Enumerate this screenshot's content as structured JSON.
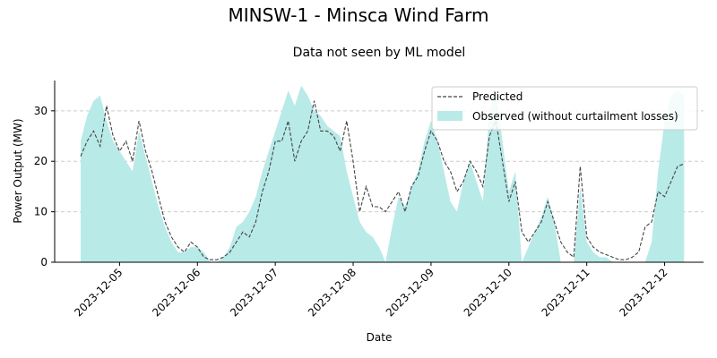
{
  "chart_data": {
    "type": "area",
    "title": "MINSW-1 - Minsca Wind Farm",
    "subtitle": "Data not seen by ML model",
    "xlabel": "Date",
    "ylabel": "Power Output (MW)",
    "xlim": [
      "2023-12-04 04:00",
      "2023-12-12 12:00"
    ],
    "ylim": [
      0,
      36
    ],
    "x_ticks": [
      "2023-12-05",
      "2023-12-06",
      "2023-12-07",
      "2023-12-08",
      "2023-12-09",
      "2023-12-10",
      "2023-12-11",
      "2023-12-12"
    ],
    "y_ticks": [
      0,
      10,
      20,
      30
    ],
    "grid": "y-dashed",
    "legend": "top-right",
    "series": [
      {
        "name": "Predicted",
        "style": "dashed-line",
        "color": "#444444",
        "points": [
          [
            "2023-12-04 12:00",
            21
          ],
          [
            "2023-12-04 14:00",
            24
          ],
          [
            "2023-12-04 16:00",
            26
          ],
          [
            "2023-12-04 18:00",
            23
          ],
          [
            "2023-12-04 20:00",
            31
          ],
          [
            "2023-12-04 22:00",
            25
          ],
          [
            "2023-12-05 00:00",
            22
          ],
          [
            "2023-12-05 02:00",
            24
          ],
          [
            "2023-12-05 04:00",
            20
          ],
          [
            "2023-12-05 06:00",
            28
          ],
          [
            "2023-12-05 08:00",
            22
          ],
          [
            "2023-12-05 10:00",
            18
          ],
          [
            "2023-12-05 12:00",
            13
          ],
          [
            "2023-12-05 14:00",
            8
          ],
          [
            "2023-12-05 16:00",
            5
          ],
          [
            "2023-12-05 18:00",
            3
          ],
          [
            "2023-12-05 20:00",
            2
          ],
          [
            "2023-12-05 22:00",
            4
          ],
          [
            "2023-12-06 00:00",
            3
          ],
          [
            "2023-12-06 02:00",
            1
          ],
          [
            "2023-12-06 04:00",
            0.5
          ],
          [
            "2023-12-06 06:00",
            0.5
          ],
          [
            "2023-12-06 08:00",
            1
          ],
          [
            "2023-12-06 10:00",
            2
          ],
          [
            "2023-12-06 12:00",
            4
          ],
          [
            "2023-12-06 14:00",
            6
          ],
          [
            "2023-12-06 16:00",
            5
          ],
          [
            "2023-12-06 18:00",
            8
          ],
          [
            "2023-12-06 20:00",
            14
          ],
          [
            "2023-12-06 22:00",
            18
          ],
          [
            "2023-12-07 00:00",
            24
          ],
          [
            "2023-12-07 02:00",
            24
          ],
          [
            "2023-12-07 04:00",
            28
          ],
          [
            "2023-12-07 06:00",
            20
          ],
          [
            "2023-12-07 08:00",
            24
          ],
          [
            "2023-12-07 10:00",
            26
          ],
          [
            "2023-12-07 12:00",
            32
          ],
          [
            "2023-12-07 14:00",
            26
          ],
          [
            "2023-12-07 16:00",
            26
          ],
          [
            "2023-12-07 18:00",
            25
          ],
          [
            "2023-12-07 20:00",
            22
          ],
          [
            "2023-12-07 22:00",
            28
          ],
          [
            "2023-12-08 00:00",
            20
          ],
          [
            "2023-12-08 02:00",
            10
          ],
          [
            "2023-12-08 04:00",
            15
          ],
          [
            "2023-12-08 06:00",
            11
          ],
          [
            "2023-12-08 08:00",
            11
          ],
          [
            "2023-12-08 10:00",
            10
          ],
          [
            "2023-12-08 12:00",
            12
          ],
          [
            "2023-12-08 14:00",
            14
          ],
          [
            "2023-12-08 16:00",
            10
          ],
          [
            "2023-12-08 18:00",
            15
          ],
          [
            "2023-12-08 20:00",
            17
          ],
          [
            "2023-12-08 22:00",
            22
          ],
          [
            "2023-12-09 00:00",
            26
          ],
          [
            "2023-12-09 02:00",
            24
          ],
          [
            "2023-12-09 04:00",
            20
          ],
          [
            "2023-12-09 06:00",
            18
          ],
          [
            "2023-12-09 08:00",
            14
          ],
          [
            "2023-12-09 10:00",
            16
          ],
          [
            "2023-12-09 12:00",
            20
          ],
          [
            "2023-12-09 14:00",
            18
          ],
          [
            "2023-12-09 16:00",
            15
          ],
          [
            "2023-12-09 18:00",
            25
          ],
          [
            "2023-12-09 20:00",
            28
          ],
          [
            "2023-12-09 22:00",
            20
          ],
          [
            "2023-12-10 00:00",
            12
          ],
          [
            "2023-12-10 02:00",
            16
          ],
          [
            "2023-12-10 04:00",
            6
          ],
          [
            "2023-12-10 06:00",
            4
          ],
          [
            "2023-12-10 08:00",
            6
          ],
          [
            "2023-12-10 10:00",
            8
          ],
          [
            "2023-12-10 12:00",
            12
          ],
          [
            "2023-12-10 14:00",
            8
          ],
          [
            "2023-12-10 16:00",
            4
          ],
          [
            "2023-12-10 18:00",
            2
          ],
          [
            "2023-12-10 20:00",
            1
          ],
          [
            "2023-12-10 22:00",
            19
          ],
          [
            "2023-12-11 00:00",
            5
          ],
          [
            "2023-12-11 02:00",
            3
          ],
          [
            "2023-12-11 04:00",
            2
          ],
          [
            "2023-12-11 06:00",
            1.5
          ],
          [
            "2023-12-11 08:00",
            1
          ],
          [
            "2023-12-11 10:00",
            0.5
          ],
          [
            "2023-12-11 12:00",
            0.5
          ],
          [
            "2023-12-11 14:00",
            1
          ],
          [
            "2023-12-11 16:00",
            2
          ],
          [
            "2023-12-11 18:00",
            7
          ],
          [
            "2023-12-11 20:00",
            8
          ],
          [
            "2023-12-11 22:00",
            14
          ],
          [
            "2023-12-12 00:00",
            13
          ],
          [
            "2023-12-12 02:00",
            16
          ],
          [
            "2023-12-12 04:00",
            19
          ],
          [
            "2023-12-12 06:00",
            19.5
          ]
        ]
      },
      {
        "name": "Observed (without curtailment losses)",
        "style": "filled-area",
        "color": "#b8eae8",
        "points": [
          [
            "2023-12-04 12:00",
            24
          ],
          [
            "2023-12-04 14:00",
            29
          ],
          [
            "2023-12-04 16:00",
            32
          ],
          [
            "2023-12-04 18:00",
            33
          ],
          [
            "2023-12-04 20:00",
            28
          ],
          [
            "2023-12-04 22:00",
            24
          ],
          [
            "2023-12-05 00:00",
            22
          ],
          [
            "2023-12-05 02:00",
            20
          ],
          [
            "2023-12-05 04:00",
            18
          ],
          [
            "2023-12-05 06:00",
            26
          ],
          [
            "2023-12-05 08:00",
            21
          ],
          [
            "2023-12-05 10:00",
            16
          ],
          [
            "2023-12-05 12:00",
            11
          ],
          [
            "2023-12-05 14:00",
            7
          ],
          [
            "2023-12-05 16:00",
            4
          ],
          [
            "2023-12-05 18:00",
            2
          ],
          [
            "2023-12-05 20:00",
            2
          ],
          [
            "2023-12-05 22:00",
            3
          ],
          [
            "2023-12-06 00:00",
            3
          ],
          [
            "2023-12-06 02:00",
            2
          ],
          [
            "2023-12-06 04:00",
            0
          ],
          [
            "2023-12-06 06:00",
            0
          ],
          [
            "2023-12-06 08:00",
            1
          ],
          [
            "2023-12-06 10:00",
            3
          ],
          [
            "2023-12-06 12:00",
            7
          ],
          [
            "2023-12-06 14:00",
            8
          ],
          [
            "2023-12-06 16:00",
            10
          ],
          [
            "2023-12-06 18:00",
            13
          ],
          [
            "2023-12-06 20:00",
            18
          ],
          [
            "2023-12-06 22:00",
            22
          ],
          [
            "2023-12-07 00:00",
            26
          ],
          [
            "2023-12-07 02:00",
            30
          ],
          [
            "2023-12-07 04:00",
            34
          ],
          [
            "2023-12-07 06:00",
            31
          ],
          [
            "2023-12-07 08:00",
            35
          ],
          [
            "2023-12-07 10:00",
            33
          ],
          [
            "2023-12-07 12:00",
            30
          ],
          [
            "2023-12-07 14:00",
            29
          ],
          [
            "2023-12-07 16:00",
            27
          ],
          [
            "2023-12-07 18:00",
            26
          ],
          [
            "2023-12-07 20:00",
            25
          ],
          [
            "2023-12-07 22:00",
            18
          ],
          [
            "2023-12-08 00:00",
            13
          ],
          [
            "2023-12-08 02:00",
            8
          ],
          [
            "2023-12-08 04:00",
            6
          ],
          [
            "2023-12-08 06:00",
            5
          ],
          [
            "2023-12-08 08:00",
            3
          ],
          [
            "2023-12-08 10:00",
            0
          ],
          [
            "2023-12-08 12:00",
            7
          ],
          [
            "2023-12-08 14:00",
            13
          ],
          [
            "2023-12-08 16:00",
            11
          ],
          [
            "2023-12-08 18:00",
            15
          ],
          [
            "2023-12-08 20:00",
            18
          ],
          [
            "2023-12-08 22:00",
            24
          ],
          [
            "2023-12-09 00:00",
            28
          ],
          [
            "2023-12-09 02:00",
            24
          ],
          [
            "2023-12-09 04:00",
            18
          ],
          [
            "2023-12-09 06:00",
            12
          ],
          [
            "2023-12-09 08:00",
            10
          ],
          [
            "2023-12-09 10:00",
            16
          ],
          [
            "2023-12-09 12:00",
            20
          ],
          [
            "2023-12-09 14:00",
            16
          ],
          [
            "2023-12-09 16:00",
            12
          ],
          [
            "2023-12-09 18:00",
            30
          ],
          [
            "2023-12-09 20:00",
            34
          ],
          [
            "2023-12-09 22:00",
            24
          ],
          [
            "2023-12-10 00:00",
            14
          ],
          [
            "2023-12-10 02:00",
            18
          ],
          [
            "2023-12-10 04:00",
            0
          ],
          [
            "2023-12-10 06:00",
            3
          ],
          [
            "2023-12-10 08:00",
            6
          ],
          [
            "2023-12-10 10:00",
            9
          ],
          [
            "2023-12-10 12:00",
            13
          ],
          [
            "2023-12-10 14:00",
            8
          ],
          [
            "2023-12-10 16:00",
            0
          ],
          [
            "2023-12-10 18:00",
            0
          ],
          [
            "2023-12-10 20:00",
            0
          ],
          [
            "2023-12-10 22:00",
            15
          ],
          [
            "2023-12-11 00:00",
            4
          ],
          [
            "2023-12-11 02:00",
            2
          ],
          [
            "2023-12-11 04:00",
            1
          ],
          [
            "2023-12-11 06:00",
            1
          ],
          [
            "2023-12-11 08:00",
            0
          ],
          [
            "2023-12-11 10:00",
            0
          ],
          [
            "2023-12-11 12:00",
            0
          ],
          [
            "2023-12-11 14:00",
            0
          ],
          [
            "2023-12-11 16:00",
            0
          ],
          [
            "2023-12-11 18:00",
            0
          ],
          [
            "2023-12-11 20:00",
            4
          ],
          [
            "2023-12-11 22:00",
            18
          ],
          [
            "2023-12-12 00:00",
            28
          ],
          [
            "2023-12-12 02:00",
            33
          ],
          [
            "2023-12-12 04:00",
            34
          ],
          [
            "2023-12-12 06:00",
            33
          ]
        ]
      }
    ]
  }
}
